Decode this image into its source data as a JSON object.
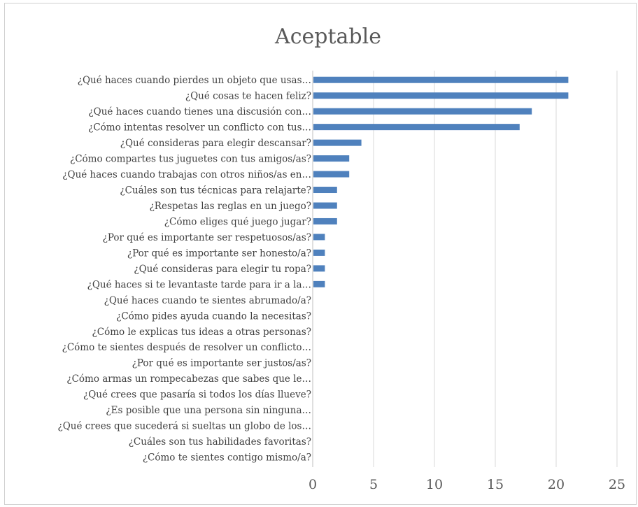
{
  "chart_data": {
    "type": "bar",
    "orientation": "horizontal",
    "title": "Aceptable",
    "xlabel": "",
    "ylabel": "",
    "xlim": [
      0,
      25
    ],
    "ticks": [
      0,
      5,
      10,
      15,
      20,
      25
    ],
    "grid": true,
    "bar_color": "#4f81bd",
    "categories": [
      "¿Qué haces cuando pierdes un objeto que usas…",
      "¿Qué cosas te hacen feliz?",
      "¿Qué haces cuando tienes una discusión con…",
      "¿Cómo intentas resolver un conflicto con tus…",
      "¿Qué consideras para elegir descansar?",
      "¿Cómo compartes tus juguetes con tus amigos/as?",
      "¿Qué haces cuando trabajas con otros niños/as en…",
      "¿Cuáles son tus técnicas para relajarte?",
      "¿Respetas las reglas en un juego?",
      "¿Cómo eliges qué juego jugar?",
      "¿Por qué es importante ser respetuosos/as?",
      "¿Por qué es importante ser honesto/a?",
      "¿Qué consideras para elegir tu ropa?",
      "¿Qué haces si te levantaste tarde para ir a la…",
      "¿Qué haces cuando te sientes abrumado/a?",
      "¿Cómo pides ayuda cuando la necesitas?",
      "¿Cómo le explicas tus ideas a otras personas?",
      "¿Cómo te sientes después de resolver un conflicto…",
      "¿Por qué es importante ser justos/as?",
      "¿Cómo armas un rompecabezas que sabes que le…",
      "¿Qué crees que pasaría si todos los días llueve?",
      "¿Es posible que una persona sin ninguna…",
      "¿Qué crees que sucederá si sueltas un globo de los…",
      "¿Cuáles son tus habilidades favoritas?",
      "¿Cómo te sientes contigo mismo/a?"
    ],
    "values": [
      21,
      21,
      18,
      17,
      4,
      3,
      3,
      2,
      2,
      2,
      1,
      1,
      1,
      1,
      0,
      0,
      0,
      0,
      0,
      0,
      0,
      0,
      0,
      0,
      0
    ]
  }
}
